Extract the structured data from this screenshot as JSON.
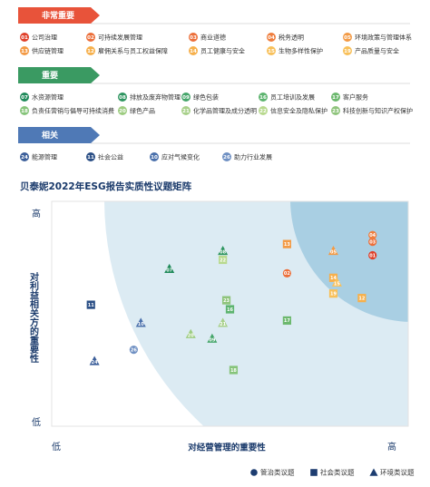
{
  "issue_groups": [
    {
      "title": "非常重要",
      "color": "#e8533a",
      "rows": [
        [
          {
            "num": "01",
            "text": "公司治理",
            "color": "#e0402a"
          },
          {
            "num": "02",
            "text": "可持续发展管理",
            "color": "#ec6f3a"
          },
          {
            "num": "03",
            "text": "商业道德",
            "color": "#ec6f3a"
          },
          {
            "num": "04",
            "text": "税务透明",
            "color": "#ef7e3e"
          },
          {
            "num": "05",
            "text": "环境政策与管理体系",
            "color": "#f39a45"
          }
        ],
        [
          {
            "num": "13",
            "text": "供应链管理",
            "color": "#f39a45"
          },
          {
            "num": "12",
            "text": "雇佣关系与员工权益保障",
            "color": "#f6b04c"
          },
          {
            "num": "14",
            "text": "员工健康与安全",
            "color": "#f6b04c"
          },
          {
            "num": "15",
            "text": "生物多样性保护",
            "color": "#f8c05a"
          },
          {
            "num": "19",
            "text": "产品质量与安全",
            "color": "#f8c05a"
          }
        ]
      ]
    },
    {
      "title": "重要",
      "color": "#3a9a62",
      "rows": [
        [
          {
            "num": "07",
            "text": "水资源管理",
            "color": "#1f8a5a"
          },
          {
            "num": "08",
            "text": "排放及废弃物管理",
            "color": "#2e9560"
          },
          {
            "num": "09",
            "text": "绿色包装",
            "color": "#45a56a"
          },
          {
            "num": "16",
            "text": "员工培训及发展",
            "color": "#5db46f"
          },
          {
            "num": "17",
            "text": "客户服务",
            "color": "#6cb86e"
          }
        ],
        [
          {
            "num": "18",
            "text": "负责任营销与倡导可持续消费",
            "color": "#86c47a"
          },
          {
            "num": "20",
            "text": "绿色产品",
            "color": "#9dcc80"
          },
          {
            "num": "21",
            "text": "化学品管理及成分透明",
            "color": "#a8d08a"
          },
          {
            "num": "22",
            "text": "信息安全及隐私保护",
            "color": "#b8d98e"
          },
          {
            "num": "23",
            "text": "科技创新与知识产权保护",
            "color": "#8fc47c"
          }
        ]
      ]
    },
    {
      "title": "相关",
      "color": "#4f79b6",
      "rows": [
        [
          {
            "num": "24",
            "text": "能源管理",
            "color": "#3c5f9a"
          },
          {
            "num": "11",
            "text": "社会公益",
            "color": "#2b4f86"
          },
          {
            "num": "10",
            "text": "应对气候变化",
            "color": "#4a70ab"
          },
          {
            "num": "26",
            "text": "助力行业发展",
            "color": "#6f90c3"
          }
        ]
      ]
    }
  ],
  "chart_data": {
    "type": "scatter",
    "title": "贝泰妮2022年ESG报告实质性议题矩阵",
    "x_label": "对经营管理的重要性",
    "y_label": "对利益相关方的重要性",
    "xlim": [
      0,
      10
    ],
    "ylim": [
      0,
      10
    ],
    "xticks": [
      {
        "value": 0,
        "label": "低"
      },
      {
        "value": 10,
        "label": "高"
      }
    ],
    "yticks": [
      {
        "value": 0,
        "label": "低"
      },
      {
        "value": 10,
        "label": "高"
      }
    ],
    "series": [
      {
        "name": "管治类议题",
        "marker": "circle",
        "color": "#1d3d70",
        "labels": [
          "01",
          "02",
          "03",
          "04",
          "26"
        ],
        "x": [
          9.0,
          6.6,
          9.0,
          9.0,
          2.3
        ],
        "values": [
          7.6,
          6.8,
          8.2,
          8.5,
          3.4
        ],
        "point_colors": [
          "#e0402a",
          "#ec6f3a",
          "#ec6f3a",
          "#ef7e3e",
          "#6f90c3"
        ]
      },
      {
        "name": "社会类议题",
        "marker": "square",
        "color": "#1d3d70",
        "labels": [
          "12",
          "13",
          "14",
          "19",
          "16",
          "17",
          "18",
          "22",
          "23",
          "11"
        ],
        "x": [
          8.7,
          6.6,
          7.9,
          7.9,
          5.0,
          6.6,
          5.1,
          4.8,
          4.9,
          1.1
        ],
        "values": [
          5.7,
          8.1,
          6.6,
          5.9,
          5.2,
          4.7,
          2.5,
          7.4,
          5.6,
          5.4
        ],
        "point_colors": [
          "#f6b04c",
          "#f39a45",
          "#f6b04c",
          "#f8c05a",
          "#5db46f",
          "#6cb86e",
          "#86c47a",
          "#b8d98e",
          "#8fc47c",
          "#2b4f86"
        ]
      },
      {
        "name": "环境类议题",
        "marker": "triangle",
        "color": "#1d3d70",
        "labels": [
          "05",
          "15",
          "07",
          "08",
          "09",
          "20",
          "21",
          "24",
          "10"
        ],
        "x": [
          7.9,
          8.0,
          3.3,
          4.8,
          4.5,
          3.9,
          4.8,
          1.2,
          2.5
        ],
        "values": [
          7.8,
          6.4,
          7.0,
          7.8,
          3.9,
          4.1,
          4.6,
          2.9,
          4.6
        ],
        "point_colors": [
          "#f39a45",
          "#f8c05a",
          "#1f8a5a",
          "#2e9560",
          "#45a56a",
          "#9dcc80",
          "#a8d08a",
          "#3c5f9a",
          "#4a70ab"
        ]
      }
    ]
  }
}
